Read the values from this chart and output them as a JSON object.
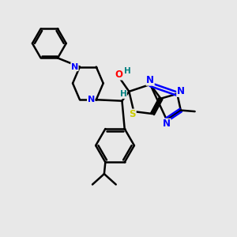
{
  "background_color": "#e8e8e8",
  "atom_colors": {
    "N": "#0000ff",
    "O": "#ff0000",
    "S": "#cccc00",
    "H": "#008080",
    "C": "#000000"
  },
  "bond_width": 1.8,
  "figsize": [
    3.0,
    3.0
  ],
  "dpi": 100,
  "xlim": [
    0,
    10
  ],
  "ylim": [
    0,
    10
  ]
}
